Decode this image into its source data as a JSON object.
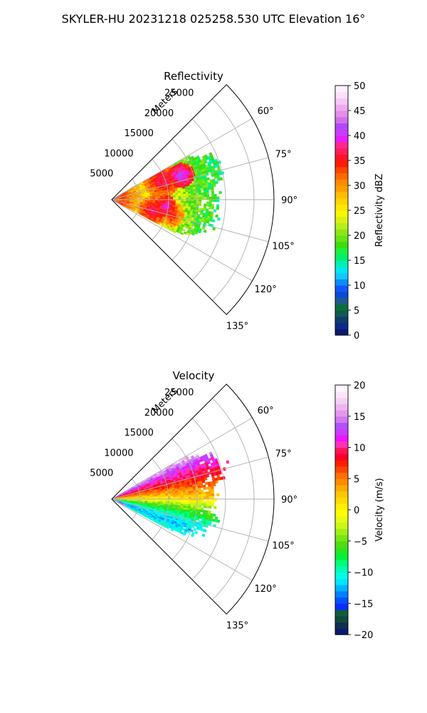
{
  "figure": {
    "suptitle": "SKYLER-HU  20231218  025258.530 UTC Elevation 16°"
  },
  "chart_data": [
    {
      "type": "heatmap",
      "projection": "polar-sector",
      "title": "Reflectivity",
      "radial_label": "Meters",
      "radial_ticks": [
        5000,
        10000,
        15000,
        20000,
        25000
      ],
      "radial_tick_labels": [
        "5000",
        "10000",
        "15000",
        "20000",
        "25000"
      ],
      "rlim": [
        0,
        28500
      ],
      "azimuth_range_deg": [
        45,
        135
      ],
      "azimuth_ticks": [
        60,
        75,
        90,
        105,
        120,
        135
      ],
      "azimuth_tick_labels": [
        "60°",
        "75°",
        "90°",
        "105°",
        "120°",
        "135°"
      ],
      "grid": true,
      "field": {
        "max_range_by_azimuth": [
          [
            59,
            0
          ],
          [
            61,
            15200
          ],
          [
            66,
            18800
          ],
          [
            72,
            20000
          ],
          [
            78,
            19500
          ],
          [
            84,
            17800
          ],
          [
            90,
            18500
          ],
          [
            96,
            17200
          ],
          [
            102,
            18500
          ],
          [
            108,
            17000
          ],
          [
            113,
            15800
          ],
          [
            117,
            13000
          ],
          [
            119,
            0
          ]
        ],
        "base_band_dbz": [
          [
            2000,
            33
          ],
          [
            5500,
            27
          ],
          [
            9000,
            24
          ],
          [
            13000,
            21
          ],
          [
            17000,
            18
          ],
          [
            20000,
            16
          ]
        ],
        "cells": [
          {
            "az": 69,
            "r": 9500,
            "dbz": 38,
            "size": 3200
          },
          {
            "az": 71,
            "r": 13000,
            "dbz": 42,
            "size": 2200
          },
          {
            "az": 97,
            "r": 9500,
            "dbz": 40,
            "size": 2000
          },
          {
            "az": 105,
            "r": 7500,
            "dbz": 38,
            "size": 2600
          },
          {
            "az": 104,
            "r": 11000,
            "dbz": 36,
            "size": 2200
          }
        ]
      },
      "colorbar": {
        "label": "Reflectivity dBZ",
        "range": [
          0,
          50
        ],
        "ticks": [
          0,
          5,
          10,
          15,
          20,
          25,
          30,
          35,
          40,
          45,
          50
        ],
        "tick_labels": [
          "0",
          "5",
          "10",
          "15",
          "20",
          "25",
          "30",
          "35",
          "40",
          "45",
          "50"
        ],
        "colors": [
          "#0b1a6e",
          "#0d2a8a",
          "#103c6a",
          "#0f5a50",
          "#0b6e3a",
          "#1f5a8c",
          "#0a4ad6",
          "#1455ff",
          "#0a8cff",
          "#12c8ff",
          "#00e8ee",
          "#00f0b4",
          "#00f06e",
          "#1ef03c",
          "#3cdc10",
          "#64e414",
          "#8ee614",
          "#b4f01c",
          "#dcf014",
          "#f8f800",
          "#ffe800",
          "#ffd200",
          "#ffbc00",
          "#ffa000",
          "#ff8a00",
          "#ff6a00",
          "#ff4400",
          "#ff1c00",
          "#ff1428",
          "#ff1e5a",
          "#ff288c",
          "#e61eff",
          "#c83cff",
          "#b446ff",
          "#d270e6",
          "#e68cea",
          "#f0a8f0",
          "#f5c8f5",
          "#fae0fa",
          "#fff0ff"
        ]
      }
    },
    {
      "type": "heatmap",
      "projection": "polar-sector",
      "title": "Velocity",
      "radial_label": "Meters",
      "radial_ticks": [
        5000,
        10000,
        15000,
        20000,
        25000
      ],
      "radial_tick_labels": [
        "5000",
        "10000",
        "15000",
        "20000",
        "25000"
      ],
      "rlim": [
        0,
        28500
      ],
      "azimuth_range_deg": [
        45,
        135
      ],
      "azimuth_ticks": [
        60,
        75,
        90,
        105,
        120,
        135
      ],
      "azimuth_tick_labels": [
        "60°",
        "75°",
        "90°",
        "105°",
        "120°",
        "135°"
      ],
      "grid": true,
      "field": {
        "max_range_by_azimuth": [
          [
            59,
            0
          ],
          [
            61,
            15200
          ],
          [
            66,
            18800
          ],
          [
            72,
            20000
          ],
          [
            78,
            19500
          ],
          [
            84,
            17800
          ],
          [
            90,
            18500
          ],
          [
            96,
            17200
          ],
          [
            102,
            18500
          ],
          [
            108,
            17000
          ],
          [
            113,
            15800
          ],
          [
            117,
            13000
          ],
          [
            119,
            0
          ]
        ],
        "velocity_by_azimuth": [
          [
            60,
            16
          ],
          [
            63,
            14
          ],
          [
            67,
            11
          ],
          [
            72,
            9
          ],
          [
            78,
            6
          ],
          [
            84,
            3
          ],
          [
            89,
            1
          ],
          [
            93,
            -3
          ],
          [
            97,
            -6
          ],
          [
            102,
            -9
          ],
          [
            107,
            -12
          ],
          [
            112,
            -13
          ],
          [
            116,
            -11
          ],
          [
            119,
            -10
          ]
        ],
        "near_range_edges": [
          {
            "az_from": 113,
            "az_to": 120,
            "r_to": 2600,
            "m_per_s": 15
          }
        ]
      },
      "colorbar": {
        "label": "Velocity (m/s)",
        "range": [
          -20,
          20
        ],
        "ticks": [
          -20,
          -15,
          -10,
          -5,
          0,
          5,
          10,
          15,
          20
        ],
        "tick_labels": [
          "−20",
          "−15",
          "−10",
          "−5",
          "0",
          "5",
          "10",
          "15",
          "20"
        ],
        "colors": [
          "#0b1a6e",
          "#0f2e50",
          "#0f4a3a",
          "#0c5e3c",
          "#0a2cff",
          "#0050ff",
          "#0080ff",
          "#00b4ff",
          "#00e6ff",
          "#00ffe6",
          "#00ffb4",
          "#00ff78",
          "#00f03c",
          "#28e61e",
          "#50dc14",
          "#78e614",
          "#a0f014",
          "#c8f814",
          "#e6fa14",
          "#ffff00",
          "#fff000",
          "#ffdc00",
          "#ffc800",
          "#ffaa00",
          "#ff8c00",
          "#ff6e00",
          "#ff4600",
          "#ff1e00",
          "#ff0028",
          "#ff145a",
          "#ff32b4",
          "#f014ff",
          "#c83cff",
          "#b450ff",
          "#d278f0",
          "#e696f0",
          "#f0b4f0",
          "#f5d2f5",
          "#fae6fa",
          "#fff4ff"
        ]
      }
    }
  ]
}
